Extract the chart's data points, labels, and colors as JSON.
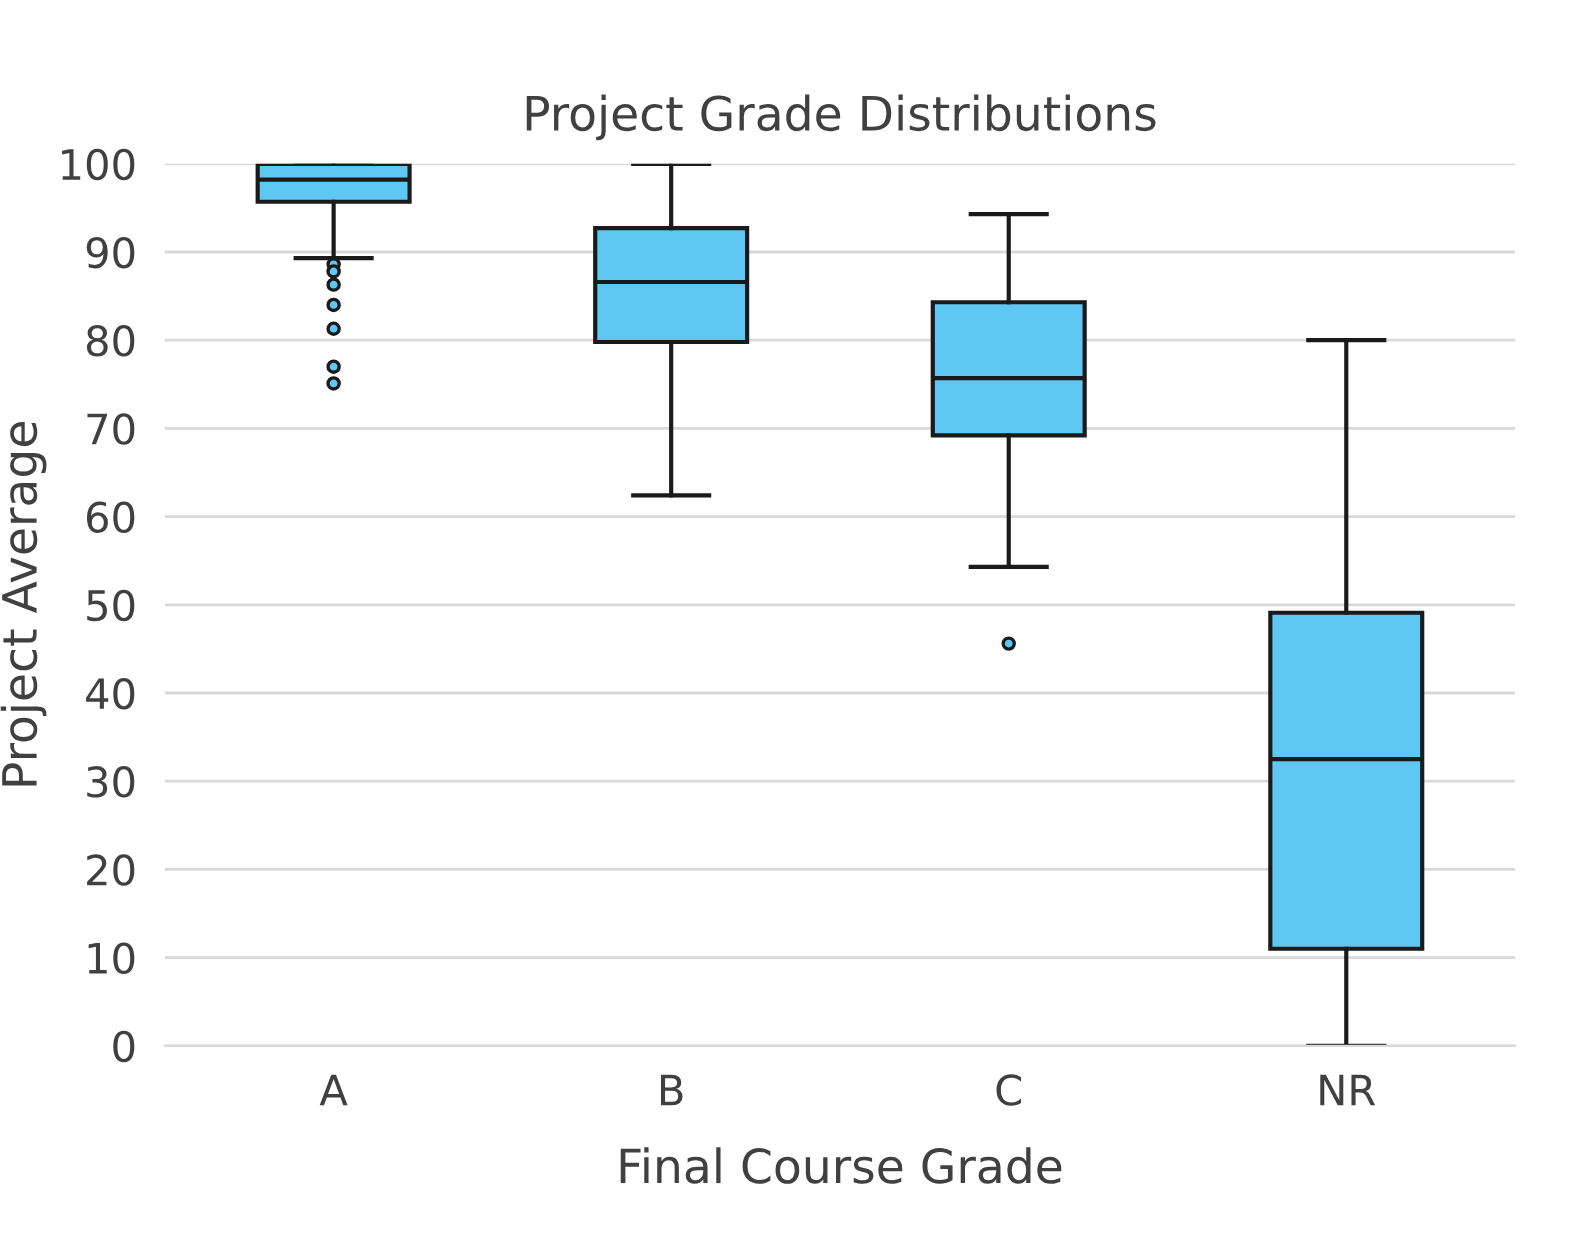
{
  "chart_data": {
    "type": "box",
    "title": "Project Grade Distributions",
    "xlabel": "Final Course Grade",
    "ylabel": "Project Average",
    "categories": [
      "A",
      "B",
      "C",
      "NR"
    ],
    "color": "#5ec8f2",
    "ylim": [
      0,
      100
    ],
    "yticks": [
      0,
      10,
      20,
      30,
      40,
      50,
      60,
      70,
      80,
      90,
      100
    ],
    "grid": "y",
    "boxes": [
      {
        "low": 89.3,
        "q1": 95.7,
        "median": 98.2,
        "q3": 100,
        "high": 100,
        "outliers": [
          88.6,
          87.8,
          86.3,
          84.0,
          81.3,
          77.0,
          75.1
        ]
      },
      {
        "low": 62.4,
        "q1": 79.8,
        "median": 86.6,
        "q3": 92.7,
        "high": 100
      },
      {
        "low": 54.3,
        "q1": 69.2,
        "median": 75.7,
        "q3": 84.3,
        "high": 94.3,
        "outliers": [
          45.6
        ]
      },
      {
        "low": 0,
        "q1": 11.0,
        "median": 32.5,
        "q3": 49.1,
        "high": 80.0
      }
    ]
  }
}
